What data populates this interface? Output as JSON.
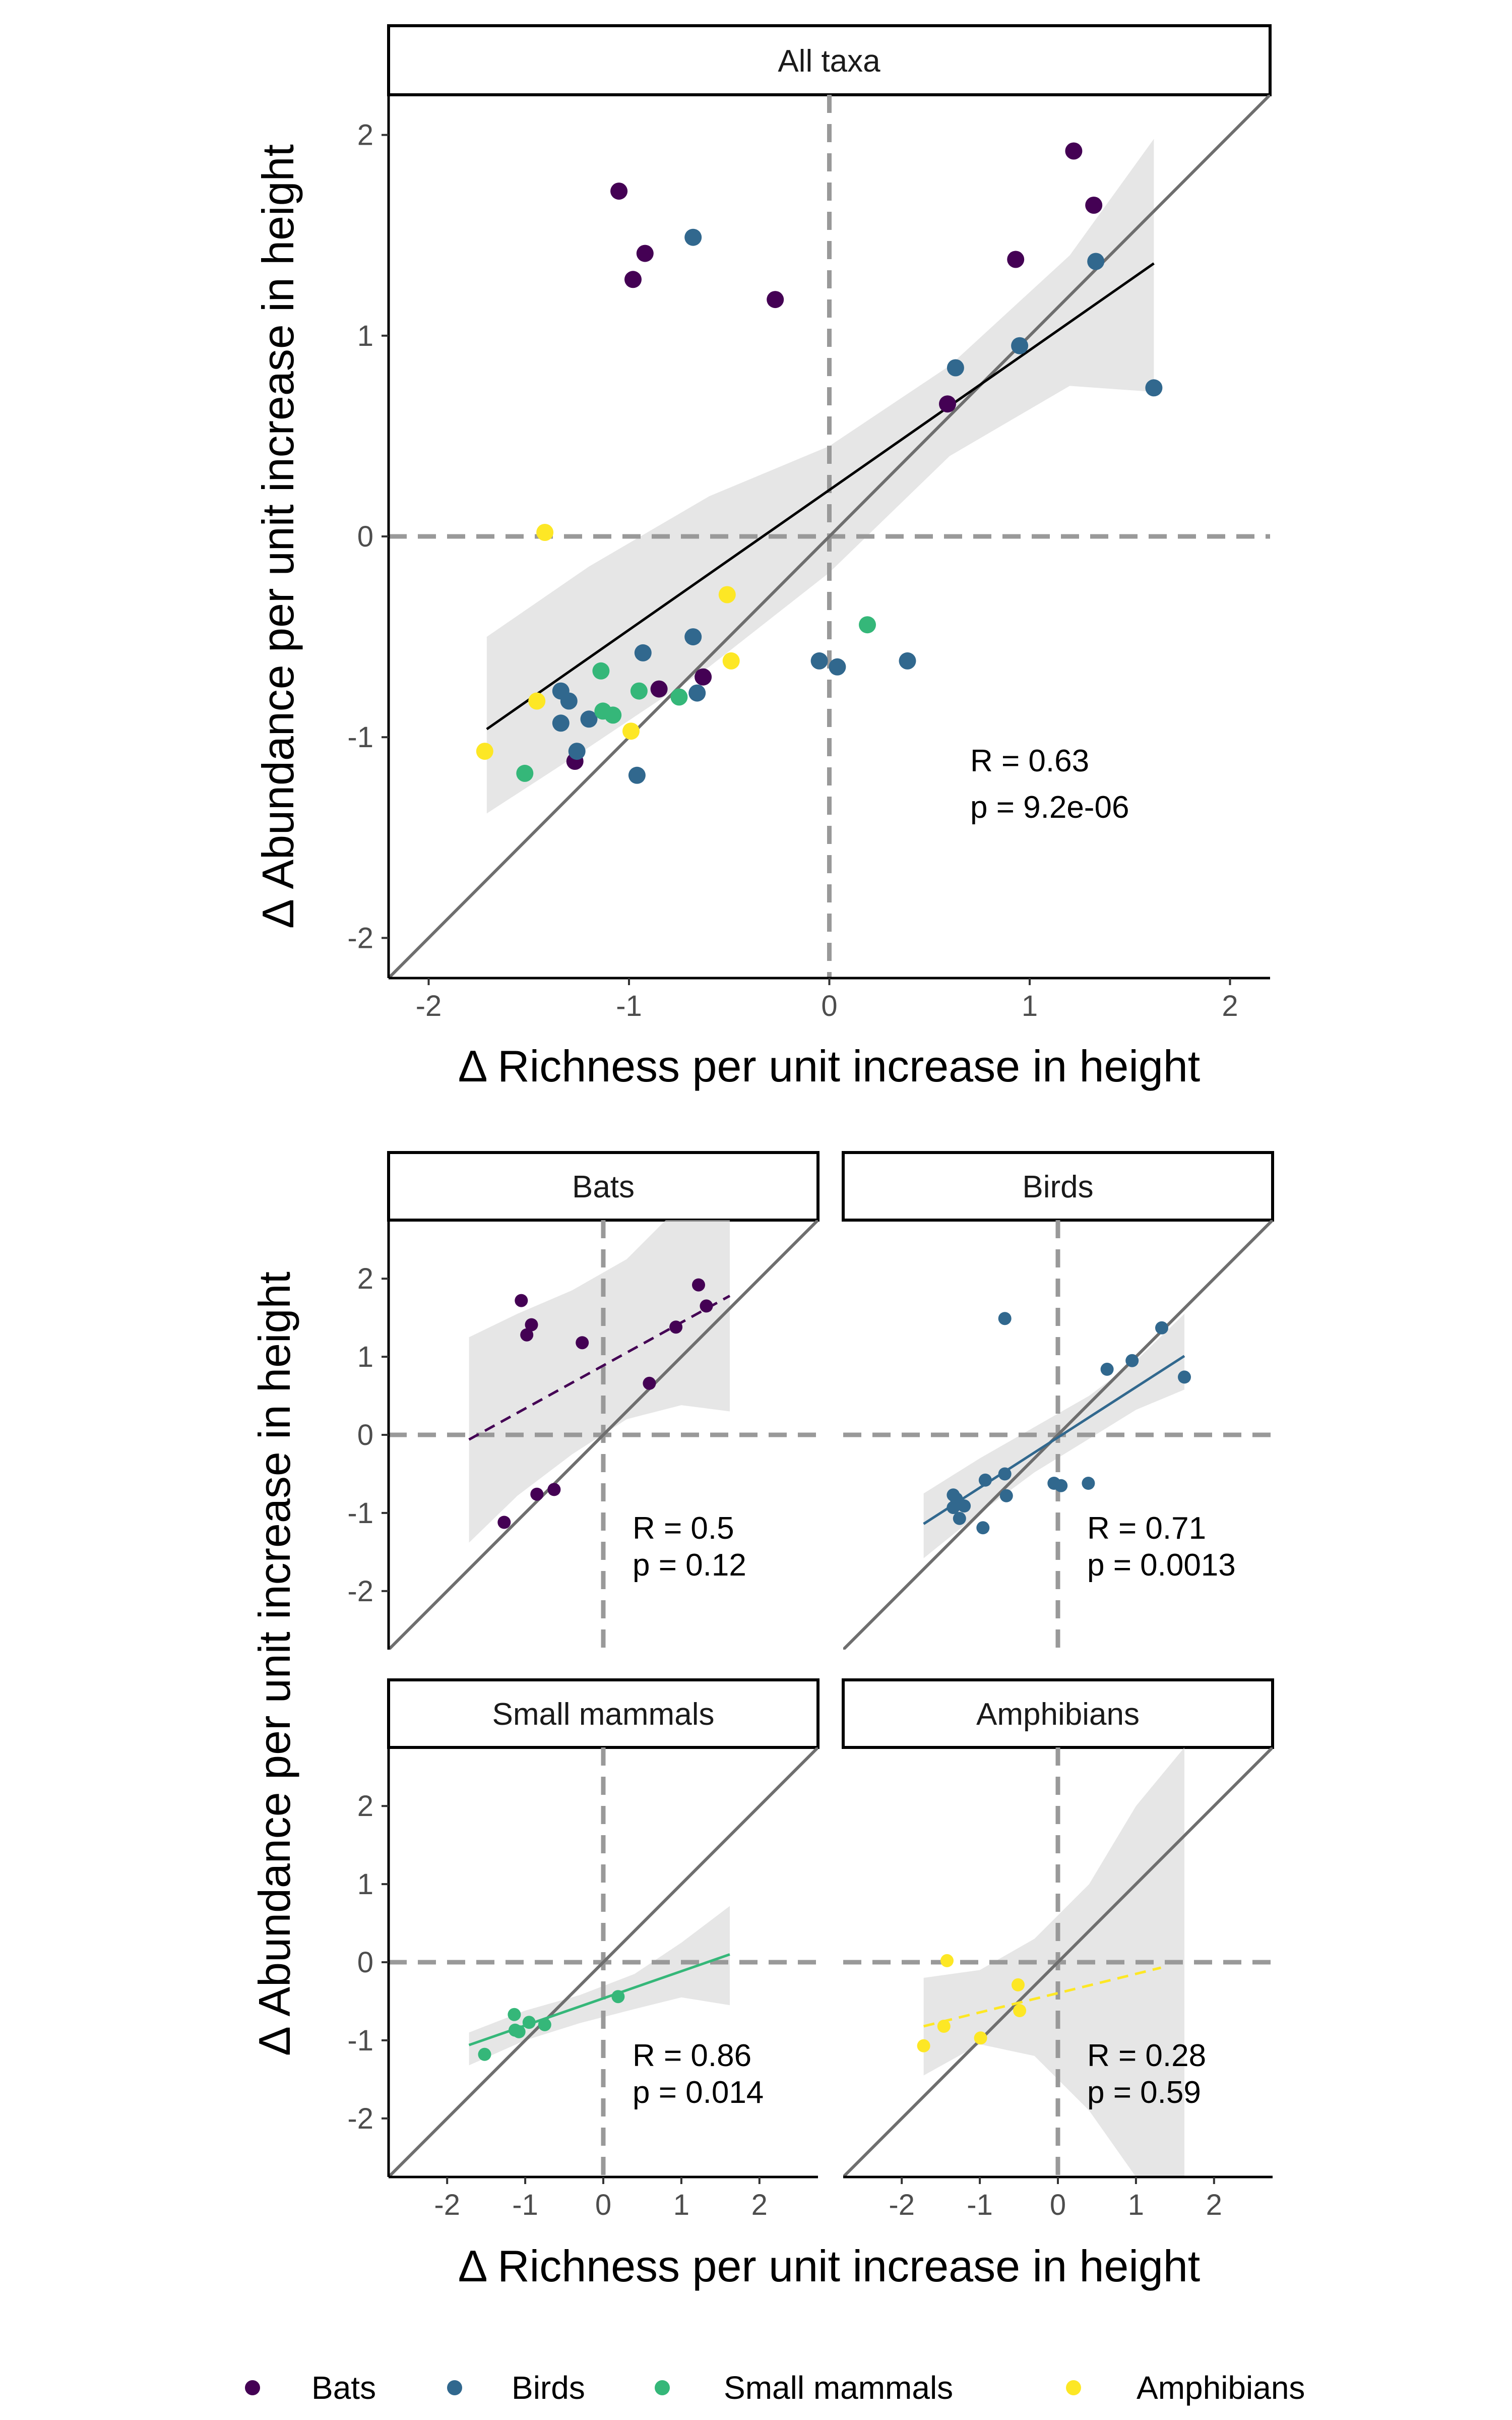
{
  "chart_data": {
    "type": "scatter",
    "legend": {
      "placement": "bottom",
      "items": [
        {
          "label": "Bats",
          "color": "#440154"
        },
        {
          "label": "Birds",
          "color": "#31688E"
        },
        {
          "label": "Small mammals",
          "color": "#35B779"
        },
        {
          "label": "Amphibians",
          "color": "#FDE725"
        }
      ]
    },
    "top_panel": {
      "strip": "All taxa",
      "xlabel": "Δ Richness per unit increase in height",
      "ylabel": "Δ Abundance per unit increase in height",
      "xlim": [
        -2.2,
        2.2
      ],
      "ylim": [
        -2.2,
        2.2
      ],
      "xticks": [
        -2,
        -1,
        0,
        1,
        2
      ],
      "yticks": [
        -2,
        -1,
        0,
        1,
        2
      ],
      "xtick_labels": [
        "-2",
        "-1",
        "0",
        "1",
        "2"
      ],
      "ytick_labels": [
        "-2",
        "-1",
        "0",
        "1",
        "2"
      ],
      "stats": {
        "R": "R = 0.63",
        "p": "p = 9.2e-06"
      },
      "fit": {
        "x": [
          -1.71,
          1.62
        ],
        "y": [
          -0.96,
          1.36
        ],
        "style": "solid",
        "color": "#000000"
      },
      "ci": {
        "x": [
          -1.71,
          -1.2,
          -0.6,
          0,
          0.6,
          1.2,
          1.62
        ],
        "upper": [
          -0.5,
          -0.15,
          0.2,
          0.45,
          0.85,
          1.4,
          1.98
        ],
        "lower": [
          -1.38,
          -1.05,
          -0.65,
          -0.18,
          0.4,
          0.75,
          0.72
        ]
      },
      "series": [
        {
          "name": "Bats",
          "points": [
            [
              -1.05,
              1.72
            ],
            [
              -0.92,
              1.41
            ],
            [
              -0.98,
              1.28
            ],
            [
              -0.27,
              1.18
            ],
            [
              1.22,
              1.92
            ],
            [
              1.32,
              1.65
            ],
            [
              0.93,
              1.38
            ],
            [
              0.59,
              0.66
            ],
            [
              -1.27,
              -1.12
            ],
            [
              -0.85,
              -0.76
            ],
            [
              -0.63,
              -0.7
            ]
          ]
        },
        {
          "name": "Birds",
          "points": [
            [
              -0.68,
              1.49
            ],
            [
              1.33,
              1.37
            ],
            [
              0.95,
              0.95
            ],
            [
              0.63,
              0.84
            ],
            [
              1.62,
              0.74
            ],
            [
              -0.05,
              -0.62
            ],
            [
              0.04,
              -0.65
            ],
            [
              0.39,
              -0.62
            ],
            [
              -0.68,
              -0.5
            ],
            [
              -0.93,
              -0.58
            ],
            [
              -1.34,
              -0.77
            ],
            [
              -1.3,
              -0.82
            ],
            [
              -1.2,
              -0.91
            ],
            [
              -1.34,
              -0.93
            ],
            [
              -0.66,
              -0.78
            ],
            [
              -1.26,
              -1.07
            ],
            [
              -0.96,
              -1.19
            ]
          ]
        },
        {
          "name": "Small mammals",
          "points": [
            [
              0.19,
              -0.44
            ],
            [
              -1.14,
              -0.67
            ],
            [
              -0.95,
              -0.77
            ],
            [
              -0.75,
              -0.8
            ],
            [
              -1.13,
              -0.87
            ],
            [
              -1.08,
              -0.89
            ],
            [
              -1.52,
              -1.18
            ]
          ]
        },
        {
          "name": "Amphibians",
          "points": [
            [
              -1.42,
              0.02
            ],
            [
              -0.51,
              -0.29
            ],
            [
              -0.49,
              -0.62
            ],
            [
              -1.46,
              -0.82
            ],
            [
              -0.99,
              -0.97
            ],
            [
              -1.72,
              -1.07
            ]
          ]
        }
      ]
    },
    "bottom_panels": {
      "xlabel": "Δ Richness per unit increase in height",
      "ylabel": "Δ Abundance per unit increase in height",
      "xlim": [
        -2.75,
        2.75
      ],
      "ylim": [
        -2.75,
        2.75
      ],
      "xticks": [
        -2,
        -1,
        0,
        1,
        2
      ],
      "yticks": [
        -2,
        -1,
        0,
        1,
        2
      ],
      "xtick_labels": [
        "-2",
        "-1",
        "0",
        "1",
        "2"
      ],
      "ytick_labels": [
        "-2",
        "-1",
        "0",
        "1",
        "2"
      ],
      "panels": [
        {
          "strip": "Bats",
          "color": "#440154",
          "stats": {
            "R": "R = 0.5",
            "p": "p = 0.12"
          },
          "fit_style": "dashed",
          "fit": {
            "x": [
              -1.72,
              1.62
            ],
            "y": [
              -0.06,
              1.78
            ]
          },
          "ci": {
            "x": [
              -1.72,
              -1.1,
              -0.4,
              0.3,
              1.0,
              1.62
            ],
            "upper": [
              1.25,
              1.55,
              1.85,
              2.25,
              2.95,
              3.6
            ],
            "lower": [
              -1.38,
              -0.78,
              -0.25,
              0.2,
              0.38,
              0.3
            ]
          },
          "points": [
            [
              -1.05,
              1.72
            ],
            [
              -0.92,
              1.41
            ],
            [
              -0.98,
              1.28
            ],
            [
              -0.27,
              1.18
            ],
            [
              1.22,
              1.92
            ],
            [
              1.32,
              1.65
            ],
            [
              0.93,
              1.38
            ],
            [
              0.59,
              0.66
            ],
            [
              -1.27,
              -1.12
            ],
            [
              -0.85,
              -0.76
            ],
            [
              -0.63,
              -0.7
            ]
          ]
        },
        {
          "strip": "Birds",
          "color": "#31688E",
          "stats": {
            "R": "R = 0.71",
            "p": "p = 0.0013"
          },
          "fit_style": "solid",
          "fit": {
            "x": [
              -1.72,
              1.62
            ],
            "y": [
              -1.14,
              1.01
            ]
          },
          "ci": {
            "x": [
              -1.72,
              -1.0,
              -0.3,
              0.4,
              1.0,
              1.62
            ],
            "upper": [
              -0.75,
              -0.3,
              0.1,
              0.5,
              0.95,
              1.55
            ],
            "lower": [
              -1.58,
              -1.0,
              -0.48,
              -0.05,
              0.32,
              0.58
            ]
          },
          "points": [
            [
              -0.68,
              1.49
            ],
            [
              1.33,
              1.37
            ],
            [
              0.95,
              0.95
            ],
            [
              0.63,
              0.84
            ],
            [
              1.62,
              0.74
            ],
            [
              -0.05,
              -0.62
            ],
            [
              0.04,
              -0.65
            ],
            [
              0.39,
              -0.62
            ],
            [
              -0.68,
              -0.5
            ],
            [
              -0.93,
              -0.58
            ],
            [
              -1.34,
              -0.77
            ],
            [
              -1.3,
              -0.82
            ],
            [
              -1.2,
              -0.91
            ],
            [
              -1.34,
              -0.93
            ],
            [
              -0.66,
              -0.78
            ],
            [
              -1.26,
              -1.07
            ],
            [
              -0.96,
              -1.19
            ]
          ]
        },
        {
          "strip": "Small mammals",
          "color": "#35B779",
          "stats": {
            "R": "R = 0.86",
            "p": "p = 0.014"
          },
          "fit_style": "solid",
          "fit": {
            "x": [
              -1.72,
              1.62
            ],
            "y": [
              -1.06,
              0.1
            ]
          },
          "ci": {
            "x": [
              -1.72,
              -1.0,
              -0.3,
              0.4,
              1.0,
              1.62
            ],
            "upper": [
              -0.9,
              -0.62,
              -0.42,
              -0.15,
              0.25,
              0.72
            ],
            "lower": [
              -1.32,
              -1.0,
              -0.78,
              -0.6,
              -0.45,
              -0.55
            ]
          },
          "points": [
            [
              0.19,
              -0.44
            ],
            [
              -1.14,
              -0.67
            ],
            [
              -0.95,
              -0.77
            ],
            [
              -0.75,
              -0.8
            ],
            [
              -1.13,
              -0.87
            ],
            [
              -1.08,
              -0.89
            ],
            [
              -1.52,
              -1.18
            ]
          ]
        },
        {
          "strip": "Amphibians",
          "color": "#FDE725",
          "stats": {
            "R": "R = 0.28",
            "p": "p = 0.59"
          },
          "fit_style": "dashed",
          "fit": {
            "x": [
              -1.72,
              1.32
            ],
            "y": [
              -0.82,
              -0.07
            ]
          },
          "ci": {
            "x": [
              -1.72,
              -1.0,
              -0.3,
              0.4,
              1.0,
              1.62
            ],
            "upper": [
              -0.2,
              -0.1,
              0.3,
              1.0,
              2.0,
              2.75
            ],
            "lower": [
              -1.45,
              -1.05,
              -1.2,
              -1.9,
              -2.75,
              -2.75
            ]
          },
          "points": [
            [
              -1.42,
              0.02
            ],
            [
              -0.51,
              -0.29
            ],
            [
              -0.49,
              -0.62
            ],
            [
              -1.46,
              -0.82
            ],
            [
              -0.99,
              -0.97
            ],
            [
              -1.72,
              -1.07
            ]
          ]
        }
      ]
    }
  }
}
